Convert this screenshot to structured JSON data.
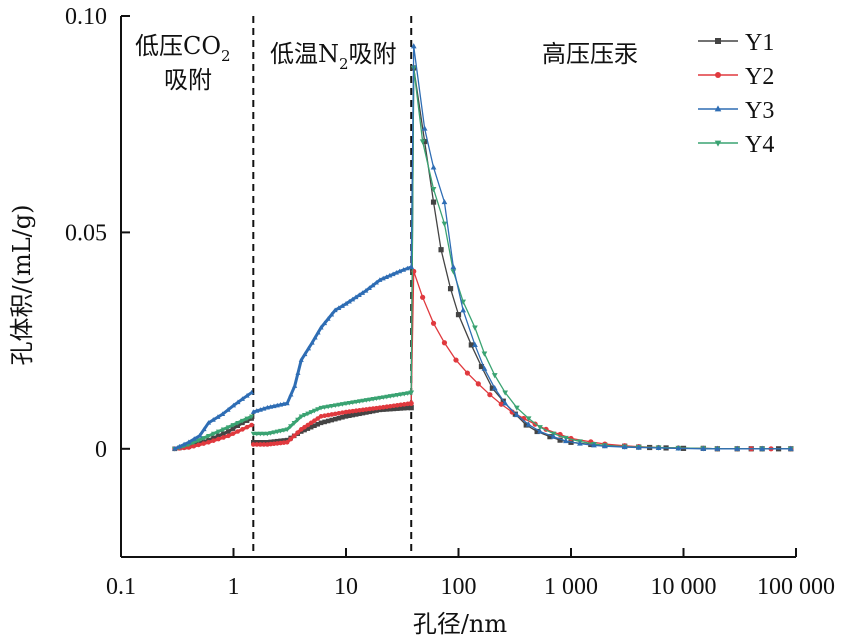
{
  "chart_data": {
    "type": "line",
    "xlabel": "孔径/nm",
    "ylabel": "孔体积/(mL/g)",
    "x_scale": "log",
    "xlim": [
      0.1,
      100000
    ],
    "ylim": [
      -0.025,
      0.1
    ],
    "xticks": [
      0.1,
      1,
      10,
      100,
      1000,
      10000,
      100000
    ],
    "xtick_labels": [
      "0.1",
      "1",
      "10",
      "100",
      "1 000",
      "10 000",
      "100 000"
    ],
    "yticks": [
      0,
      0.05,
      0.1
    ],
    "ytick_labels": [
      "0",
      "0.05",
      "0.10"
    ],
    "dividers": [
      1.5,
      38
    ],
    "regions": [
      {
        "label": "低压CO",
        "sub": "2",
        "label2": "吸附"
      },
      {
        "label": "低温N",
        "sub": "2",
        "label2": "吸附"
      },
      {
        "label": "高压压汞"
      }
    ],
    "legend_position": "top-right",
    "series": [
      {
        "name": "Y1",
        "color": "#444444",
        "marker": "square",
        "co2": [
          [
            0.3,
            0.0
          ],
          [
            0.4,
            0.0005
          ],
          [
            0.6,
            0.002
          ],
          [
            0.9,
            0.004
          ],
          [
            1.2,
            0.006
          ],
          [
            1.45,
            0.007
          ]
        ],
        "n2": [
          [
            1.5,
            0.0015
          ],
          [
            2,
            0.0015
          ],
          [
            3,
            0.002
          ],
          [
            4,
            0.004
          ],
          [
            6,
            0.006
          ],
          [
            10,
            0.0075
          ],
          [
            20,
            0.009
          ],
          [
            38,
            0.0095
          ]
        ],
        "hg": [
          [
            38,
            0.0095
          ],
          [
            40,
            0.088
          ],
          [
            50,
            0.071
          ],
          [
            60,
            0.057
          ],
          [
            70,
            0.046
          ],
          [
            85,
            0.037
          ],
          [
            100,
            0.031
          ],
          [
            130,
            0.024
          ],
          [
            160,
            0.019
          ],
          [
            200,
            0.014
          ],
          [
            250,
            0.011
          ],
          [
            320,
            0.008
          ],
          [
            400,
            0.0055
          ],
          [
            500,
            0.004
          ],
          [
            650,
            0.0028
          ],
          [
            800,
            0.002
          ],
          [
            1000,
            0.0015
          ],
          [
            1500,
            0.001
          ],
          [
            2000,
            0.0008
          ],
          [
            3000,
            0.0006
          ],
          [
            4000,
            0.0004
          ],
          [
            5000,
            0.0003
          ],
          [
            7000,
            0.0002
          ],
          [
            10000,
            0.0001
          ],
          [
            15000,
            0.0001
          ],
          [
            20000,
            0.0
          ],
          [
            30000,
            0.0
          ],
          [
            40000,
            0.0
          ],
          [
            50000,
            0.0
          ],
          [
            70000,
            0.0
          ],
          [
            90000,
            0.0
          ]
        ]
      },
      {
        "name": "Y2",
        "color": "#e0393e",
        "marker": "circle",
        "co2": [
          [
            0.3,
            0.0
          ],
          [
            0.4,
            0.0003
          ],
          [
            0.6,
            0.0015
          ],
          [
            0.9,
            0.003
          ],
          [
            1.2,
            0.0045
          ],
          [
            1.45,
            0.0055
          ]
        ],
        "n2": [
          [
            1.5,
            0.001
          ],
          [
            2,
            0.001
          ],
          [
            3,
            0.0015
          ],
          [
            4,
            0.0045
          ],
          [
            6,
            0.0075
          ],
          [
            10,
            0.0085
          ],
          [
            20,
            0.0095
          ],
          [
            38,
            0.0105
          ]
        ],
        "hg": [
          [
            38,
            0.0105
          ],
          [
            40,
            0.041
          ],
          [
            48,
            0.035
          ],
          [
            60,
            0.029
          ],
          [
            75,
            0.0245
          ],
          [
            95,
            0.0205
          ],
          [
            120,
            0.0175
          ],
          [
            150,
            0.015
          ],
          [
            190,
            0.0125
          ],
          [
            240,
            0.0103
          ],
          [
            300,
            0.0085
          ],
          [
            380,
            0.007
          ],
          [
            480,
            0.0057
          ],
          [
            600,
            0.0045
          ],
          [
            800,
            0.0033
          ],
          [
            1000,
            0.0024
          ],
          [
            1500,
            0.0016
          ],
          [
            2000,
            0.0011
          ],
          [
            3000,
            0.0007
          ],
          [
            4000,
            0.0005
          ],
          [
            6000,
            0.0003
          ],
          [
            9000,
            0.0002
          ],
          [
            15000,
            0.0001
          ],
          [
            20000,
            0.0
          ],
          [
            30000,
            0.0
          ],
          [
            40000,
            0.0
          ],
          [
            60000,
            0.0
          ],
          [
            90000,
            0.0
          ]
        ]
      },
      {
        "name": "Y3",
        "color": "#2e6db4",
        "marker": "triangle-up",
        "co2": [
          [
            0.3,
            0.0
          ],
          [
            0.4,
            0.0015
          ],
          [
            0.5,
            0.003
          ],
          [
            0.6,
            0.006
          ],
          [
            0.8,
            0.008
          ],
          [
            1.0,
            0.01
          ],
          [
            1.2,
            0.0115
          ],
          [
            1.45,
            0.013
          ]
        ],
        "n2": [
          [
            1.5,
            0.0085
          ],
          [
            2,
            0.0095
          ],
          [
            3,
            0.0105
          ],
          [
            3.5,
            0.0145
          ],
          [
            4,
            0.0205
          ],
          [
            5,
            0.0245
          ],
          [
            6,
            0.028
          ],
          [
            8,
            0.032
          ],
          [
            10,
            0.0335
          ],
          [
            15,
            0.0365
          ],
          [
            20,
            0.039
          ],
          [
            30,
            0.041
          ],
          [
            38,
            0.042
          ]
        ],
        "hg": [
          [
            38,
            0.042
          ],
          [
            40,
            0.093
          ],
          [
            50,
            0.074
          ],
          [
            60,
            0.065
          ],
          [
            75,
            0.057
          ],
          [
            90,
            0.042
          ],
          [
            110,
            0.032
          ],
          [
            140,
            0.024
          ],
          [
            170,
            0.0185
          ],
          [
            210,
            0.014
          ],
          [
            260,
            0.0105
          ],
          [
            330,
            0.0078
          ],
          [
            420,
            0.0056
          ],
          [
            530,
            0.004
          ],
          [
            700,
            0.0028
          ],
          [
            900,
            0.0018
          ],
          [
            1200,
            0.0012
          ],
          [
            1600,
            0.0008
          ],
          [
            2000,
            0.0006
          ],
          [
            3000,
            0.0004
          ],
          [
            4000,
            0.0003
          ],
          [
            6000,
            0.0002
          ],
          [
            9000,
            0.0001
          ],
          [
            15000,
            0.0
          ],
          [
            20000,
            0.0
          ],
          [
            30000,
            0.0
          ],
          [
            50000,
            0.0
          ],
          [
            90000,
            0.0
          ]
        ]
      },
      {
        "name": "Y4",
        "color": "#3aa372",
        "marker": "triangle-down",
        "co2": [
          [
            0.3,
            0.0
          ],
          [
            0.4,
            0.001
          ],
          [
            0.6,
            0.003
          ],
          [
            0.9,
            0.005
          ],
          [
            1.2,
            0.0065
          ],
          [
            1.45,
            0.0075
          ]
        ],
        "n2": [
          [
            1.5,
            0.0035
          ],
          [
            2,
            0.0035
          ],
          [
            3,
            0.0045
          ],
          [
            4,
            0.0075
          ],
          [
            6,
            0.0095
          ],
          [
            10,
            0.0105
          ],
          [
            20,
            0.0118
          ],
          [
            38,
            0.013
          ]
        ],
        "hg": [
          [
            38,
            0.013
          ],
          [
            40,
            0.088
          ],
          [
            48,
            0.071
          ],
          [
            60,
            0.06
          ],
          [
            75,
            0.052
          ],
          [
            90,
            0.041
          ],
          [
            110,
            0.034
          ],
          [
            140,
            0.028
          ],
          [
            170,
            0.022
          ],
          [
            210,
            0.017
          ],
          [
            260,
            0.013
          ],
          [
            330,
            0.0095
          ],
          [
            420,
            0.007
          ],
          [
            530,
            0.005
          ],
          [
            700,
            0.0035
          ],
          [
            900,
            0.0025
          ],
          [
            1200,
            0.0017
          ],
          [
            1600,
            0.0011
          ],
          [
            2000,
            0.0008
          ],
          [
            3000,
            0.0005
          ],
          [
            4000,
            0.0004
          ],
          [
            6000,
            0.0003
          ],
          [
            9000,
            0.0002
          ],
          [
            15000,
            0.0001
          ],
          [
            20000,
            0.0
          ],
          [
            30000,
            0.0
          ],
          [
            50000,
            0.0
          ],
          [
            90000,
            0.0
          ]
        ]
      }
    ]
  }
}
